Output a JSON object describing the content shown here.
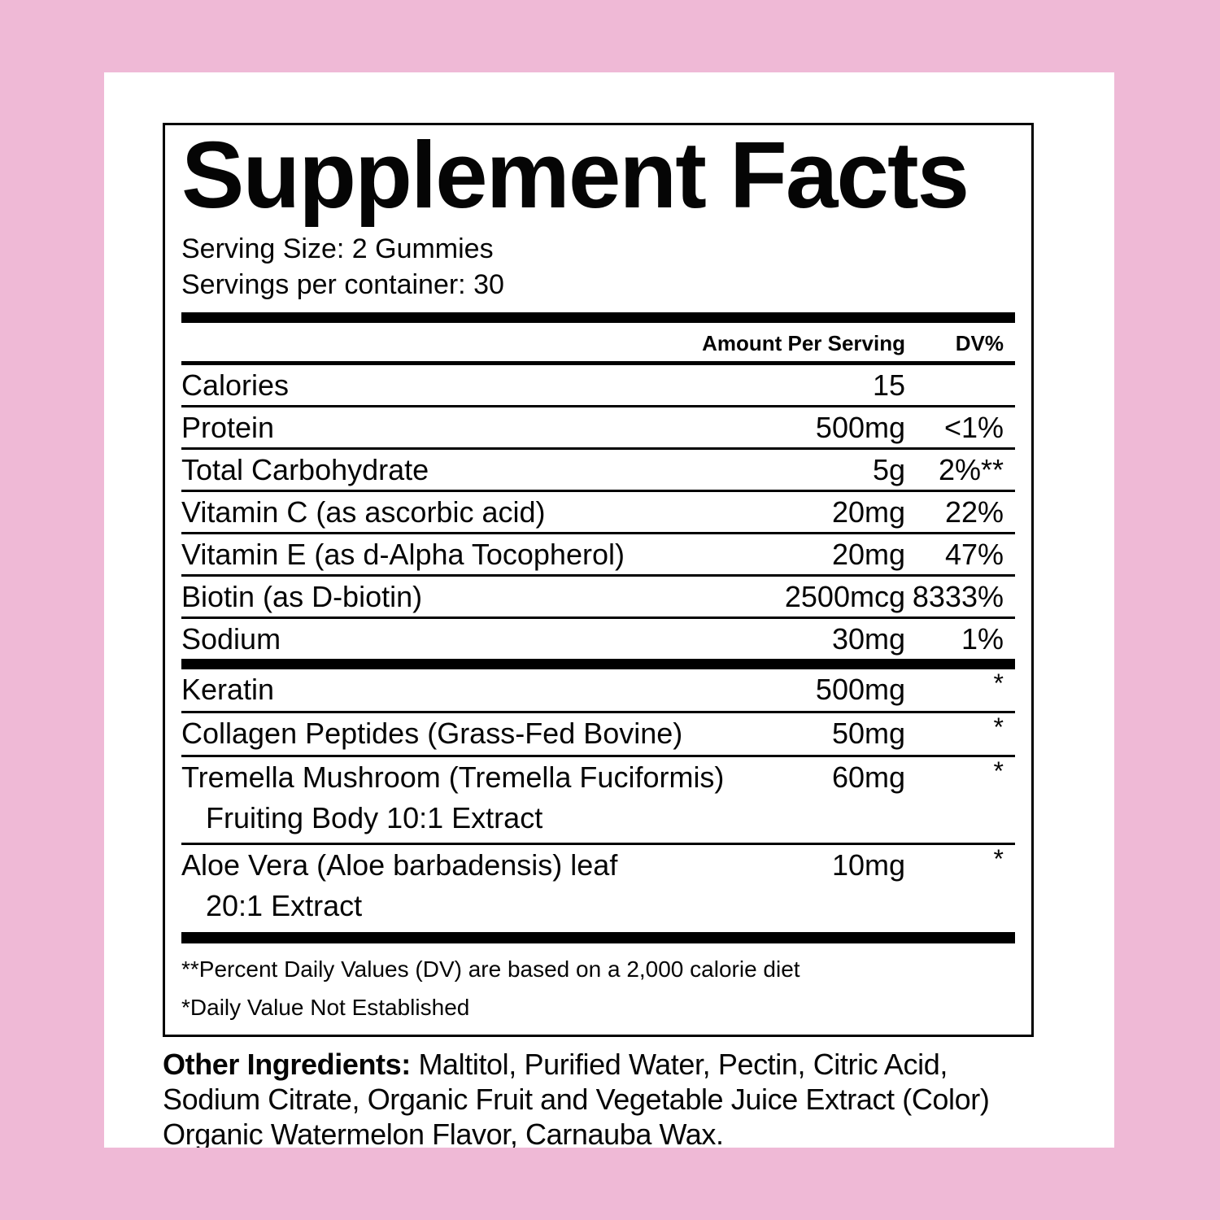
{
  "colors": {
    "background_pink": "#efb9d6",
    "panel_white": "#ffffff",
    "ink_black": "#000000"
  },
  "label": {
    "title": "Supplement Facts",
    "serving_size": "Serving Size: 2 Gummies",
    "servings_per_container": "Servings per container: 30"
  },
  "table": {
    "header": {
      "amount": "Amount Per Serving",
      "dv": "DV%"
    },
    "main_rows": [
      {
        "label": "Calories",
        "amount": "15",
        "dv": ""
      },
      {
        "label": "Protein",
        "amount": "500mg",
        "dv": "<1%"
      },
      {
        "label": "Total Carbohydrate",
        "amount": "5g",
        "dv": "2%**"
      },
      {
        "label": "Vitamin C (as ascorbic acid)",
        "amount": "20mg",
        "dv": "22%"
      },
      {
        "label": "Vitamin E (as d-Alpha Tocopherol)",
        "amount": "20mg",
        "dv": "47%"
      },
      {
        "label": "Biotin (as D-biotin)",
        "amount": "2500mcg",
        "dv": "8333%"
      },
      {
        "label": "Sodium",
        "amount": "30mg",
        "dv": "1%"
      }
    ],
    "blend_rows": [
      {
        "label": "Keratin",
        "amount": "500mg",
        "dv": "*",
        "sub": ""
      },
      {
        "label": "Collagen Peptides (Grass-Fed Bovine)",
        "amount": "50mg",
        "dv": "*",
        "sub": ""
      },
      {
        "label": "Tremella Mushroom (Tremella Fuciformis)",
        "amount": "60mg",
        "dv": "*",
        "sub": "Fruiting Body 10:1 Extract"
      },
      {
        "label": "Aloe Vera (Aloe barbadensis) leaf",
        "amount": "10mg",
        "dv": "*",
        "sub": "20:1 Extract"
      }
    ],
    "footnotes": [
      "**Percent Daily Values (DV) are based on a 2,000 calorie diet",
      "*Daily Value Not Established"
    ]
  },
  "other_ingredients": {
    "label": "Other Ingredients:",
    "line1_rest": " Maltitol, Purified Water, Pectin, Citric Acid,",
    "line2": "Sodium Citrate, Organic Fruit and Vegetable Juice Extract (Color)",
    "line3": "Organic Watermelon Flavor, Carnauba Wax."
  }
}
